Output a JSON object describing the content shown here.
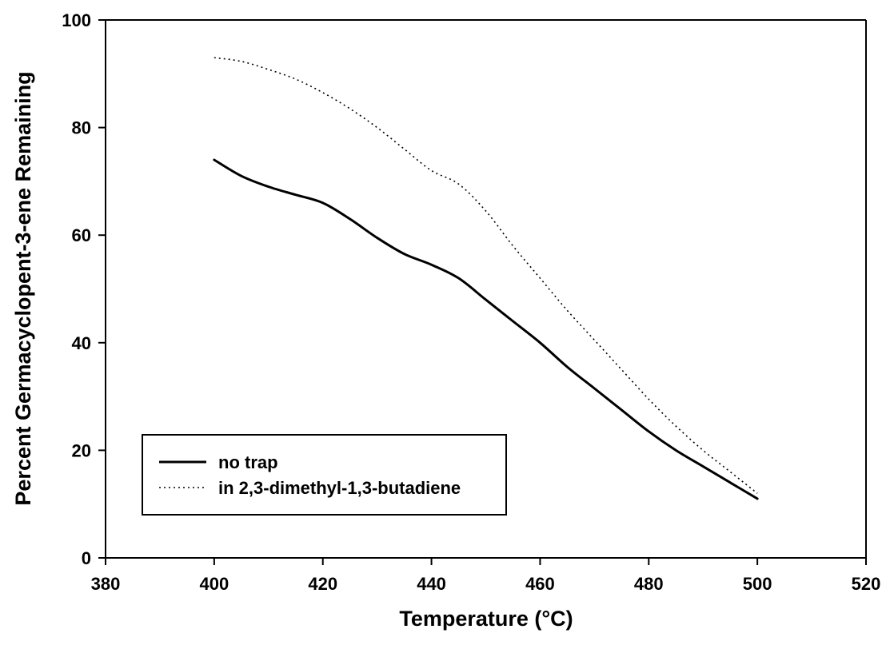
{
  "chart_data": {
    "type": "line",
    "title": "",
    "xlabel": "Temperature (°C)",
    "ylabel": "Percent Germacyclopent-3-ene Remaining",
    "xlim": [
      380,
      520
    ],
    "ylim": [
      0,
      100
    ],
    "xticks": [
      380,
      400,
      420,
      440,
      460,
      480,
      500,
      520
    ],
    "yticks": [
      0,
      20,
      40,
      60,
      80,
      100
    ],
    "grid": false,
    "legend_position": "lower-left",
    "series": [
      {
        "name": "no trap",
        "style": "solid",
        "color": "#000000",
        "x": [
          400,
          405,
          410,
          415,
          420,
          425,
          430,
          435,
          440,
          445,
          450,
          455,
          460,
          465,
          470,
          475,
          480,
          485,
          490,
          495,
          500
        ],
        "y": [
          74,
          71,
          69,
          67.5,
          66,
          63,
          59.5,
          56.5,
          54.5,
          52,
          48,
          44,
          40,
          35.5,
          31.5,
          27.5,
          23.5,
          20,
          17,
          14,
          11
        ]
      },
      {
        "name": "in 2,3-dimethyl-1,3-butadiene",
        "style": "dotted",
        "color": "#000000",
        "x": [
          400,
          405,
          410,
          415,
          420,
          425,
          430,
          435,
          440,
          445,
          450,
          455,
          460,
          465,
          470,
          475,
          480,
          485,
          490,
          495,
          500
        ],
        "y": [
          93,
          92.3,
          90.8,
          89,
          86.5,
          83.5,
          80,
          76,
          72,
          69.5,
          64.5,
          58,
          52,
          46,
          40.5,
          35,
          29.5,
          24.5,
          20,
          16,
          12
        ]
      }
    ]
  }
}
